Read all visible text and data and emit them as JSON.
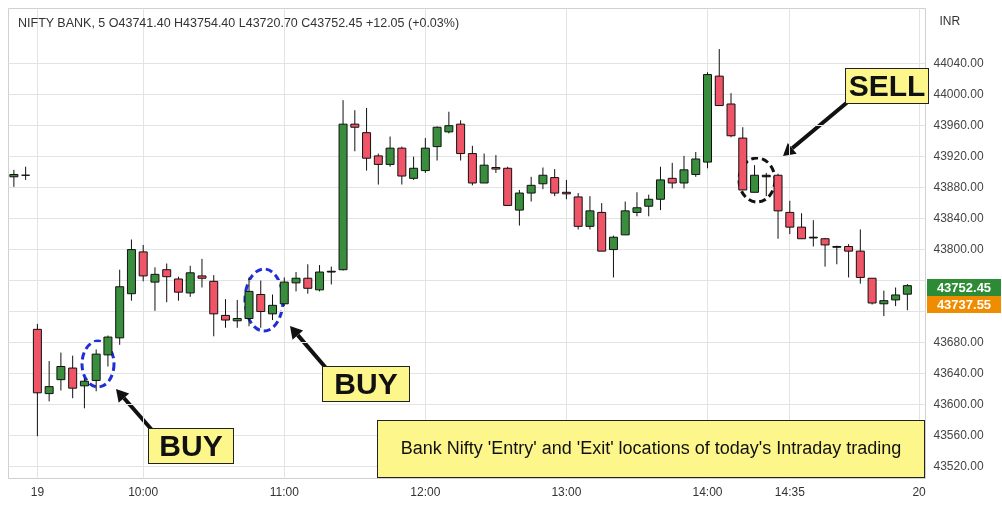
{
  "chart_data": {
    "type": "candlestick",
    "title": "NIFTY BANK, 5  O43741.40  H43754.40  L43720.70  C43752.45  +12.05 (+0.03%)",
    "ylabel": "INR",
    "categories": [
      null,
      null,
      "19",
      null,
      null,
      null,
      null,
      null,
      null,
      null,
      null,
      "10:00",
      null,
      null,
      null,
      null,
      null,
      null,
      null,
      null,
      null,
      null,
      null,
      "11:00",
      null,
      null,
      null,
      null,
      null,
      null,
      null,
      null,
      null,
      null,
      null,
      "12:00",
      null,
      null,
      null,
      null,
      null,
      null,
      null,
      null,
      null,
      null,
      null,
      "13:00",
      null,
      null,
      null,
      null,
      null,
      null,
      null,
      null,
      null,
      null,
      null,
      "14:00",
      null,
      null,
      null,
      null,
      null,
      null,
      "14:35",
      null,
      null,
      null,
      null,
      null,
      null,
      null,
      null,
      null,
      null,
      "20"
    ],
    "ohlc": [
      [
        43893,
        43902,
        43880,
        43896
      ],
      [
        43895,
        43906,
        43889,
        43895
      ],
      [
        43696,
        43703,
        43558,
        43614
      ],
      [
        43613,
        43655,
        43603,
        43622
      ],
      [
        43631,
        43666,
        43617,
        43648
      ],
      [
        43646,
        43662,
        43607,
        43620
      ],
      [
        43623,
        43633,
        43594,
        43629
      ],
      [
        43630,
        43670,
        43616,
        43664
      ],
      [
        43663,
        43688,
        43648,
        43686
      ],
      [
        43685,
        43773,
        43676,
        43751
      ],
      [
        43742,
        43812,
        43733,
        43799
      ],
      [
        43796,
        43805,
        43758,
        43765
      ],
      [
        43757,
        43776,
        43720,
        43767
      ],
      [
        43773,
        43781,
        43731,
        43764
      ],
      [
        43761,
        43764,
        43733,
        43744
      ],
      [
        43743,
        43778,
        43738,
        43769
      ],
      [
        43765,
        43787,
        43750,
        43762
      ],
      [
        43758,
        43766,
        43687,
        43716
      ],
      [
        43714,
        43735,
        43698,
        43708
      ],
      [
        43707,
        43734,
        43698,
        43710
      ],
      [
        43710,
        43763,
        43700,
        43745
      ],
      [
        43741,
        43759,
        43698,
        43719
      ],
      [
        43716,
        43741,
        43708,
        43727
      ],
      [
        43729,
        43763,
        43726,
        43757
      ],
      [
        43756,
        43770,
        43745,
        43762
      ],
      [
        43762,
        43780,
        43742,
        43749
      ],
      [
        43747,
        43779,
        43745,
        43770
      ],
      [
        43770,
        43777,
        43754,
        43771
      ],
      [
        43773,
        43992,
        43772,
        43961
      ],
      [
        43961,
        43979,
        43926,
        43957
      ],
      [
        43950,
        43982,
        43901,
        43917
      ],
      [
        43920,
        43923,
        43883,
        43909
      ],
      [
        43909,
        43945,
        43906,
        43930
      ],
      [
        43930,
        43932,
        43883,
        43894
      ],
      [
        43891,
        43919,
        43889,
        43904
      ],
      [
        43901,
        43943,
        43898,
        43930
      ],
      [
        43932,
        43958,
        43914,
        43957
      ],
      [
        43951,
        43977,
        43949,
        43959
      ],
      [
        43961,
        43966,
        43914,
        43923
      ],
      [
        43923,
        43933,
        43882,
        43885
      ],
      [
        43885,
        43923,
        43885,
        43908
      ],
      [
        43905,
        43921,
        43898,
        43903
      ],
      [
        43904,
        43906,
        43856,
        43856
      ],
      [
        43850,
        43876,
        43830,
        43872
      ],
      [
        43872,
        43893,
        43861,
        43882
      ],
      [
        43884,
        43905,
        43877,
        43895
      ],
      [
        43892,
        43903,
        43868,
        43872
      ],
      [
        43873,
        43889,
        43864,
        43871
      ],
      [
        43867,
        43872,
        43825,
        43829
      ],
      [
        43829,
        43868,
        43825,
        43849
      ],
      [
        43847,
        43859,
        43797,
        43797
      ],
      [
        43799,
        43817,
        43763,
        43815
      ],
      [
        43818,
        43861,
        43818,
        43849
      ],
      [
        43847,
        43873,
        43842,
        43853
      ],
      [
        43855,
        43870,
        43842,
        43864
      ],
      [
        43864,
        43906,
        43850,
        43889
      ],
      [
        43891,
        43911,
        43878,
        43885
      ],
      [
        43885,
        43920,
        43878,
        43902
      ],
      [
        43896,
        43925,
        43893,
        43916
      ],
      [
        43912,
        44028,
        43904,
        44025
      ],
      [
        44023,
        44058,
        43985,
        43985
      ],
      [
        43987,
        44001,
        43944,
        43946
      ],
      [
        43943,
        43957,
        43876,
        43876
      ],
      [
        43873,
        43908,
        43873,
        43895
      ],
      [
        43893,
        43898,
        43868,
        43895
      ],
      [
        43895,
        43897,
        43813,
        43849
      ],
      [
        43847,
        43862,
        43819,
        43828
      ],
      [
        43828,
        43846,
        43813,
        43813
      ],
      [
        43815,
        43837,
        43803,
        43814
      ],
      [
        43813,
        43814,
        43777,
        43805
      ],
      [
        43803,
        43804,
        43780,
        43802
      ],
      [
        43803,
        43806,
        43763,
        43797
      ],
      [
        43797,
        43825,
        43755,
        43763
      ],
      [
        43762,
        43762,
        43728,
        43730
      ],
      [
        43729,
        43746,
        43713,
        43733
      ],
      [
        43734,
        43750,
        43726,
        43740.4
      ],
      [
        43741.4,
        43754.4,
        43720.7,
        43752.45
      ],
      null
    ],
    "colors": [
      "#388e3c",
      "#111111",
      "#f05467",
      "#388e3c",
      "#388e3c",
      "#f05467",
      "#388e3c",
      "#388e3c",
      "#388e3c",
      "#388e3c",
      "#388e3c",
      "#f05467",
      "#388e3c",
      "#f05467",
      "#f05467",
      "#388e3c",
      "#f05467",
      "#f05467",
      "#f05467",
      "#388e3c",
      "#388e3c",
      "#f05467",
      "#388e3c",
      "#388e3c",
      "#388e3c",
      "#f05467",
      "#388e3c",
      "#111111",
      "#388e3c",
      "#f05467",
      "#f05467",
      "#f05467",
      "#388e3c",
      "#f05467",
      "#388e3c",
      "#388e3c",
      "#388e3c",
      "#388e3c",
      "#f05467",
      "#f05467",
      "#388e3c",
      "#f05467",
      "#f05467",
      "#388e3c",
      "#388e3c",
      "#388e3c",
      "#f05467",
      "#f05467",
      "#f05467",
      "#388e3c",
      "#f05467",
      "#388e3c",
      "#388e3c",
      "#388e3c",
      "#388e3c",
      "#388e3c",
      "#f05467",
      "#388e3c",
      "#388e3c",
      "#388e3c",
      "#f05467",
      "#f05467",
      "#f05467",
      "#388e3c",
      "#111111",
      "#f05467",
      "#f05467",
      "#f05467",
      "#111111",
      "#f05467",
      "#111111",
      "#f05467",
      "#f05467",
      "#f05467",
      "#388e3c",
      "#388e3c",
      "#388e3c",
      null
    ],
    "ylim": [
      43504,
      44111
    ],
    "yticks": [
      {
        "value": 43520,
        "label": "43520.00"
      },
      {
        "value": 43560,
        "label": "43560.00"
      },
      {
        "value": 43600,
        "label": "43600.00"
      },
      {
        "value": 43640,
        "label": "43640.00"
      },
      {
        "value": 43680,
        "label": "43680.00"
      },
      {
        "value": 43720,
        "label": null
      },
      {
        "value": 43760,
        "label": null
      },
      {
        "value": 43800,
        "label": "43800.00"
      },
      {
        "value": 43840,
        "label": "43840.00"
      },
      {
        "value": 43880,
        "label": "43880.00"
      },
      {
        "value": 43920,
        "label": "43920.00"
      },
      {
        "value": 43960,
        "label": "43960.00"
      },
      {
        "value": 44000,
        "label": "44000.00"
      },
      {
        "value": 44040,
        "label": "44040.00"
      }
    ],
    "grid": true,
    "annotations": [
      "BUY",
      "BUY",
      "SELL",
      "Bank Nifty 'Entry' and 'Exit' locations of today's Intraday trading",
      "43752.45",
      "43737.55"
    ]
  }
}
